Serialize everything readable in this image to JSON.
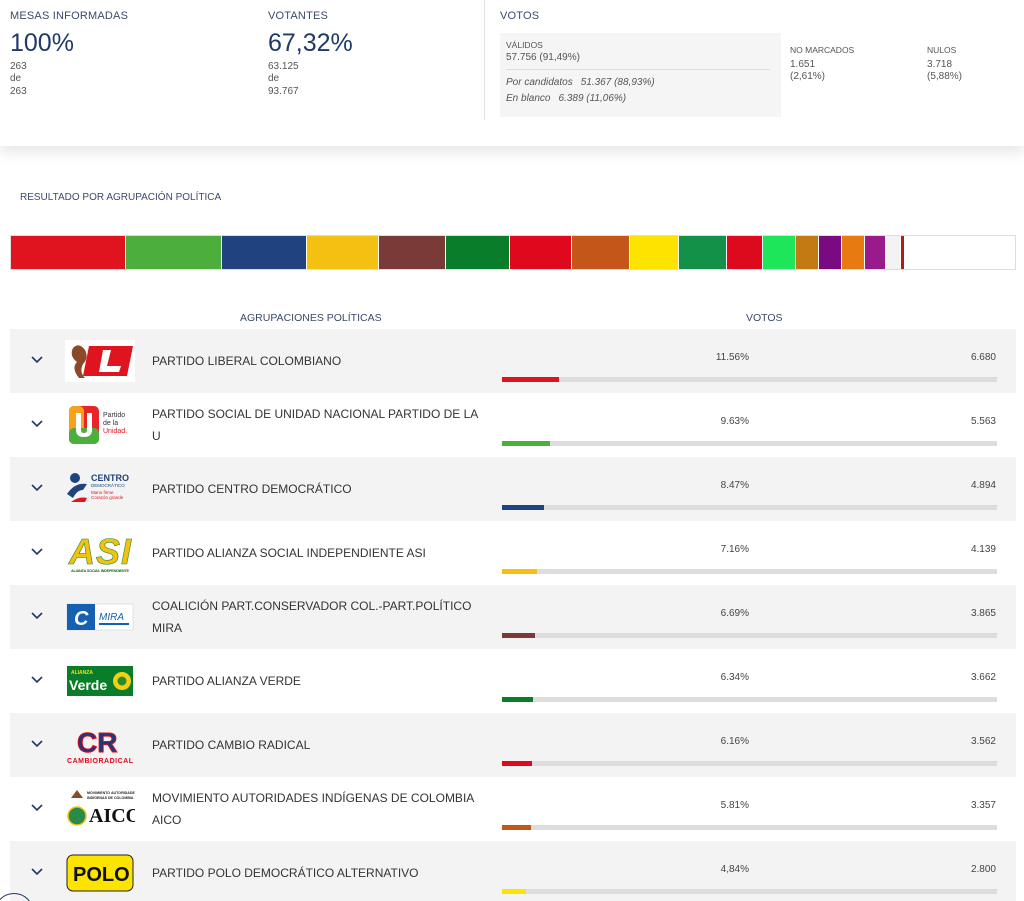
{
  "summary": {
    "mesas": {
      "title": "MESAS INFORMADAS",
      "percent": "100%",
      "count": "263",
      "de": "de",
      "total": "263"
    },
    "votantes": {
      "title": "VOTANTES",
      "percent": "67,32%",
      "count": "63.125",
      "de": "de",
      "total": "93.767"
    },
    "votos": {
      "title": "VOTOS",
      "validos_label": "VÁLIDOS",
      "validos_value": "57.756 (91,49%)",
      "por_candidatos_label": "Por candidatos",
      "por_candidatos_value": "51.367 (88,93%)",
      "en_blanco_label": "En blanco",
      "en_blanco_value": "6.389 (11,06%)",
      "no_marcados_label": "NO MARCADOS",
      "no_marcados_value": "1.651",
      "no_marcados_pct": "(2,61%)",
      "nulos_label": "NULOS",
      "nulos_value": "3.718",
      "nulos_pct": "(5,88%)"
    }
  },
  "result_title": "RESULTADO POR AGRUPACIÓN POLÍTICA",
  "stack_segments": [
    {
      "color": "#e0141e",
      "share": 11.56
    },
    {
      "color": "#4caf3c",
      "share": 9.63
    },
    {
      "color": "#20427e",
      "share": 8.47
    },
    {
      "color": "#f4c012",
      "share": 7.16
    },
    {
      "color": "#7a3a38",
      "share": 6.69
    },
    {
      "color": "#0a7d2a",
      "share": 6.34
    },
    {
      "color": "#e0081c",
      "share": 6.16
    },
    {
      "color": "#c4561a",
      "share": 5.81
    },
    {
      "color": "#fde400",
      "share": 4.84
    },
    {
      "color": "#139149",
      "share": 4.8
    },
    {
      "color": "#dc0a1c",
      "share": 3.5
    },
    {
      "color": "#1ee65a",
      "share": 3.3
    },
    {
      "color": "#c47a12",
      "share": 2.2
    },
    {
      "color": "#7a0a82",
      "share": 2.2
    },
    {
      "color": "#e87a12",
      "share": 2.2
    },
    {
      "color": "#9a1a8c",
      "share": 2.0
    },
    {
      "color": "#f3f3f3",
      "share": 1.5
    },
    {
      "color": "#b31a1a",
      "share": 0.3
    },
    {
      "color": "#ffffff",
      "share": 11.0
    }
  ],
  "columns": {
    "agrupaciones": "AGRUPACIONES POLÍTICAS",
    "votos": "VOTOS"
  },
  "parties": [
    {
      "name": "PARTIDO LIBERAL COLOMBIANO",
      "percent": "11.56%",
      "votes": "6.680",
      "share": 11.56,
      "color": "#e0141e",
      "logo": "liberal"
    },
    {
      "name": "PARTIDO SOCIAL DE UNIDAD NACIONAL PARTIDO DE LA U",
      "percent": "9.63%",
      "votes": "5.563",
      "share": 9.63,
      "color": "#4caf3c",
      "logo": "partido-u",
      "logo_lines": [
        "Partido",
        "de la",
        "Unidad."
      ]
    },
    {
      "name": "PARTIDO CENTRO DEMOCRÁTICO",
      "percent": "8.47%",
      "votes": "4.894",
      "share": 8.47,
      "color": "#20427e",
      "logo": "centro-democratico",
      "logo_lines": [
        "CENTRO",
        "DEMOCRÁTICO",
        "Mano firme",
        "Corazón grande"
      ]
    },
    {
      "name": "PARTIDO ALIANZA SOCIAL INDEPENDIENTE ASI",
      "percent": "7.16%",
      "votes": "4.139",
      "share": 7.16,
      "color": "#f4c012",
      "logo": "asi",
      "logo_lines": [
        "ASI",
        "ALIANZA SOCIAL INDEPENDIENTE"
      ]
    },
    {
      "name": "COALICIÓN PART.CONSERVADOR COL.-PART.POLÍTICO MIRA",
      "percent": "6.69%",
      "votes": "3.865",
      "share": 6.69,
      "color": "#7a3a38",
      "logo": "mira",
      "logo_lines": [
        "C",
        "MIRA"
      ]
    },
    {
      "name": "PARTIDO ALIANZA VERDE",
      "percent": "6.34%",
      "votes": "3.662",
      "share": 6.34,
      "color": "#0a7d2a",
      "logo": "verde",
      "logo_lines": [
        "ALIANZA",
        "Verde"
      ]
    },
    {
      "name": "PARTIDO CAMBIO RADICAL",
      "percent": "6.16%",
      "votes": "3.562",
      "share": 6.16,
      "color": "#e0081c",
      "logo": "cambio-radical",
      "logo_lines": [
        "CR",
        "CAMBIORADICAL"
      ]
    },
    {
      "name": "MOVIMIENTO AUTORIDADES INDÍGENAS DE COLOMBIA AICO",
      "percent": "5.81%",
      "votes": "3.357",
      "share": 5.81,
      "color": "#c4561a",
      "logo": "aico",
      "logo_lines": [
        "MOVIMIENTO AUTORIDADES",
        "INDÍGENAS DE COLOMBIA",
        "AICO"
      ]
    },
    {
      "name": "PARTIDO POLO DEMOCRÁTICO ALTERNATIVO",
      "percent": "4,84%",
      "votes": "2.800",
      "share": 4.84,
      "color": "#fde400",
      "logo": "polo",
      "logo_lines": [
        "POLO"
      ]
    }
  ]
}
